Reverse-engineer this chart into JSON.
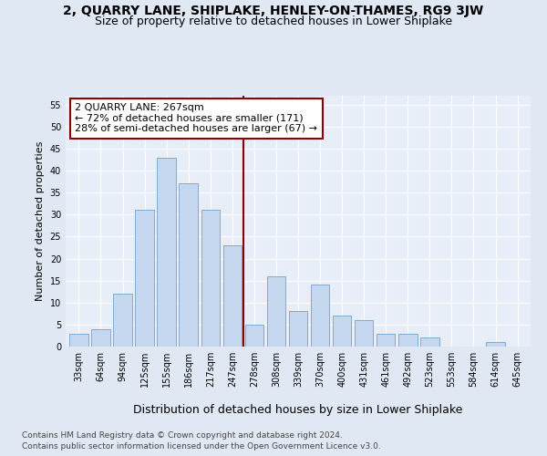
{
  "title": "2, QUARRY LANE, SHIPLAKE, HENLEY-ON-THAMES, RG9 3JW",
  "subtitle": "Size of property relative to detached houses in Lower Shiplake",
  "xlabel": "Distribution of detached houses by size in Lower Shiplake",
  "ylabel": "Number of detached properties",
  "categories": [
    "33sqm",
    "64sqm",
    "94sqm",
    "125sqm",
    "155sqm",
    "186sqm",
    "217sqm",
    "247sqm",
    "278sqm",
    "308sqm",
    "339sqm",
    "370sqm",
    "400sqm",
    "431sqm",
    "461sqm",
    "492sqm",
    "523sqm",
    "553sqm",
    "584sqm",
    "614sqm",
    "645sqm"
  ],
  "values": [
    3,
    4,
    12,
    31,
    43,
    37,
    31,
    23,
    5,
    16,
    8,
    14,
    7,
    6,
    3,
    3,
    2,
    0,
    0,
    1,
    0
  ],
  "bar_color": "#c5d8f0",
  "bar_edge_color": "#7aadd4",
  "vline_x_index": 7.5,
  "vline_color": "#8b0000",
  "annotation_line1": "2 QUARRY LANE: 267sqm",
  "annotation_line2": "← 72% of detached houses are smaller (171)",
  "annotation_line3": "28% of semi-detached houses are larger (67) →",
  "annotation_box_color": "#ffffff",
  "annotation_box_edge_color": "#8b0000",
  "ylim": [
    0,
    57
  ],
  "yticks": [
    0,
    5,
    10,
    15,
    20,
    25,
    30,
    35,
    40,
    45,
    50,
    55
  ],
  "bg_color": "#e0e8f4",
  "plot_bg_color": "#e8eef8",
  "footer_line1": "Contains HM Land Registry data © Crown copyright and database right 2024.",
  "footer_line2": "Contains public sector information licensed under the Open Government Licence v3.0.",
  "title_fontsize": 10,
  "subtitle_fontsize": 9,
  "xlabel_fontsize": 9,
  "ylabel_fontsize": 8,
  "tick_fontsize": 7,
  "annotation_fontsize": 8,
  "footer_fontsize": 6.5
}
